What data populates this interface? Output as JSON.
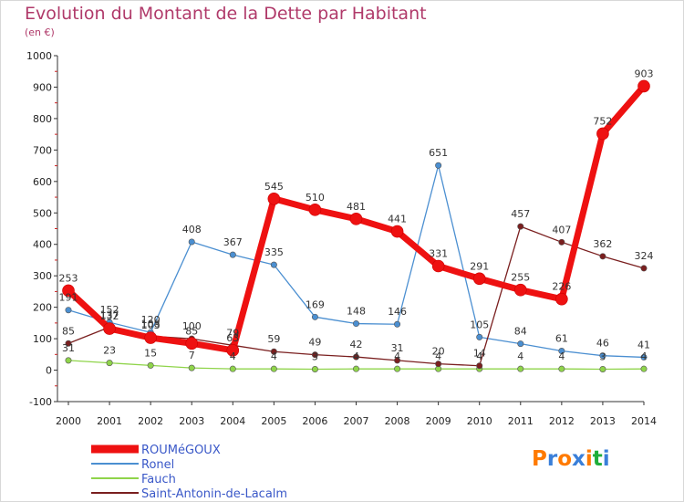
{
  "header": {
    "title": "Evolution du Montant de la Dette par Habitant",
    "unit": "(en €)"
  },
  "logo": {
    "text": "Proxiti",
    "colors": [
      "#ff7a00",
      "#3a7fd9",
      "#ff7a00",
      "#3a7fd9",
      "#ff7a00",
      "#1fae3a",
      "#3a7fd9"
    ]
  },
  "chart_data": {
    "type": "line",
    "title": "Evolution du Montant de la Dette par Habitant",
    "ylabel": "(en €)",
    "xlabel": "",
    "x": [
      "2000",
      "2001",
      "2002",
      "2003",
      "2004",
      "2005",
      "2006",
      "2007",
      "2008",
      "2009",
      "2010",
      "2011",
      "2012",
      "2013",
      "2014"
    ],
    "ylim": [
      -100,
      1000
    ],
    "yticks": [
      -100,
      0,
      100,
      200,
      300,
      400,
      500,
      600,
      700,
      800,
      900,
      1000
    ],
    "grid": false,
    "legend_position": "bottom-left",
    "series": [
      {
        "name": "ROUMéGOUX",
        "color": "#ee1111",
        "emphasis": true,
        "values": [
          253,
          132,
          103,
          85,
          63,
          545,
          510,
          481,
          441,
          331,
          291,
          255,
          226,
          752,
          903
        ],
        "labels": [
          "253",
          "132",
          "103",
          "85",
          "63",
          "545",
          "510",
          "481",
          "441",
          "331",
          "291",
          "255",
          "226",
          "752",
          "903"
        ]
      },
      {
        "name": "Ronel",
        "color": "#4b8fd1",
        "values": [
          191,
          152,
          120,
          408,
          367,
          335,
          169,
          148,
          146,
          651,
          105,
          84,
          61,
          46,
          41
        ],
        "labels": [
          "191",
          "152",
          "120",
          "408",
          "367",
          "335",
          "169",
          "148",
          "146",
          "651",
          "105",
          "84",
          "61",
          "46",
          "41"
        ]
      },
      {
        "name": "Fauch",
        "color": "#8fd44a",
        "values": [
          31,
          23,
          15,
          7,
          4,
          4,
          3,
          4,
          4,
          4,
          4,
          4,
          4,
          3,
          4
        ],
        "labels": [
          "31",
          "23",
          "15",
          "7",
          "4",
          "4",
          "3",
          "4",
          "4",
          "4",
          "4",
          "4",
          "4",
          "3",
          "4"
        ]
      },
      {
        "name": "Saint-Antonin-de-Lacalm",
        "color": "#7a1f1f",
        "values": [
          85,
          137,
          108,
          100,
          79,
          59,
          49,
          42,
          31,
          20,
          14,
          457,
          407,
          362,
          324
        ],
        "labels": [
          "85",
          "137",
          "108",
          "100",
          "79",
          "59",
          "49",
          "42",
          "31",
          "20",
          "14",
          "457",
          "407",
          "362",
          "324"
        ]
      }
    ]
  }
}
